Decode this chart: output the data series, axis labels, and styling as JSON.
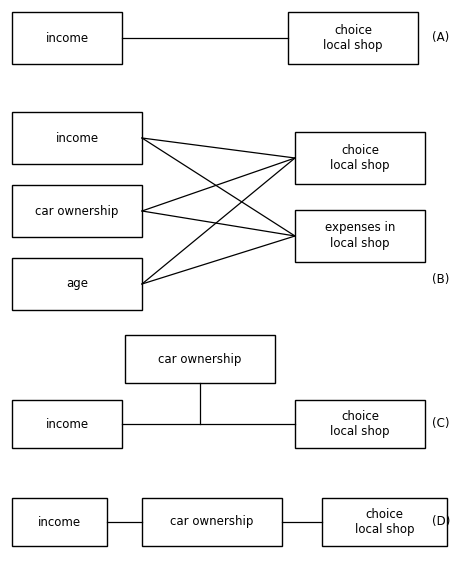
{
  "bg_color": "#ffffff",
  "fig_width": 4.74,
  "fig_height": 5.88,
  "dpi": 100,
  "label_A": "(A)",
  "label_B": "(B)",
  "label_C": "(C)",
  "label_D": "(D)",
  "box_texts": {
    "income": "income",
    "car_ownership": "car ownership",
    "age": "age",
    "choice_local_shop": "choice\nlocal shop",
    "expenses_local_shop": "expenses in\nlocal shop"
  },
  "font_size": 8.5,
  "xlim": [
    0,
    474
  ],
  "ylim": [
    0,
    588
  ]
}
